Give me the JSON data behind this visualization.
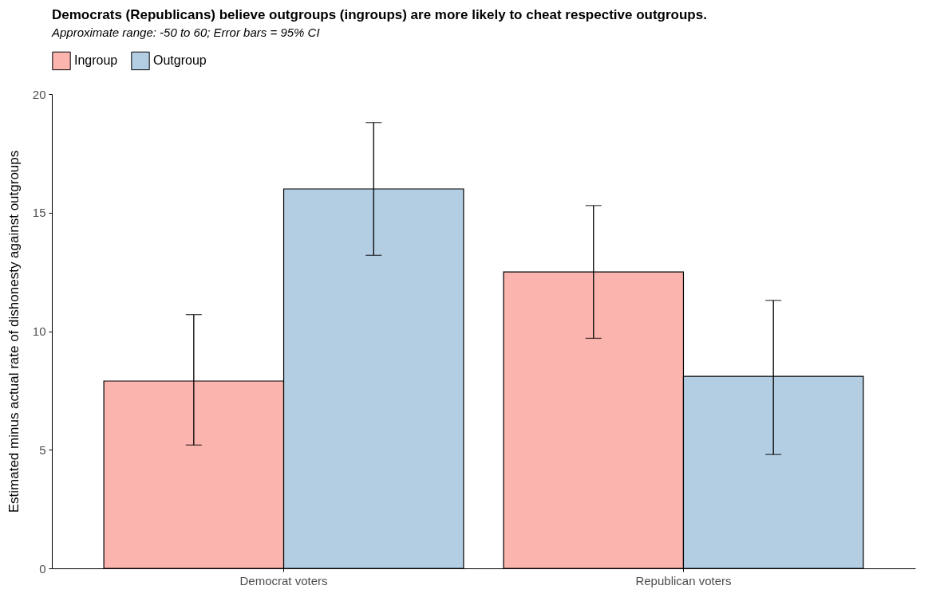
{
  "chart_data": {
    "type": "bar",
    "title": "Democrats (Republicans) believe outgroups (ingroups) are more likely to cheat respective outgroups.",
    "subtitle": "Approximate range: -50 to 60; Error bars = 95% CI",
    "ylabel": "Estimated minus actual rate of dishonesty against outgroups",
    "categories": [
      "Democrat voters",
      "Republican voters"
    ],
    "series": [
      {
        "name": "Ingroup",
        "color": "#fbb4ae",
        "values": [
          7.9,
          12.5
        ],
        "errors": [
          [
            5.2,
            10.7
          ],
          [
            9.7,
            15.3
          ]
        ]
      },
      {
        "name": "Outgroup",
        "color": "#b3cde3",
        "values": [
          16.0,
          8.1
        ],
        "errors": [
          [
            13.2,
            18.8
          ],
          [
            4.8,
            11.3
          ]
        ]
      }
    ],
    "ylim": [
      0,
      20
    ],
    "yticks": [
      0,
      5,
      10,
      15,
      20
    ],
    "legend": "top"
  }
}
